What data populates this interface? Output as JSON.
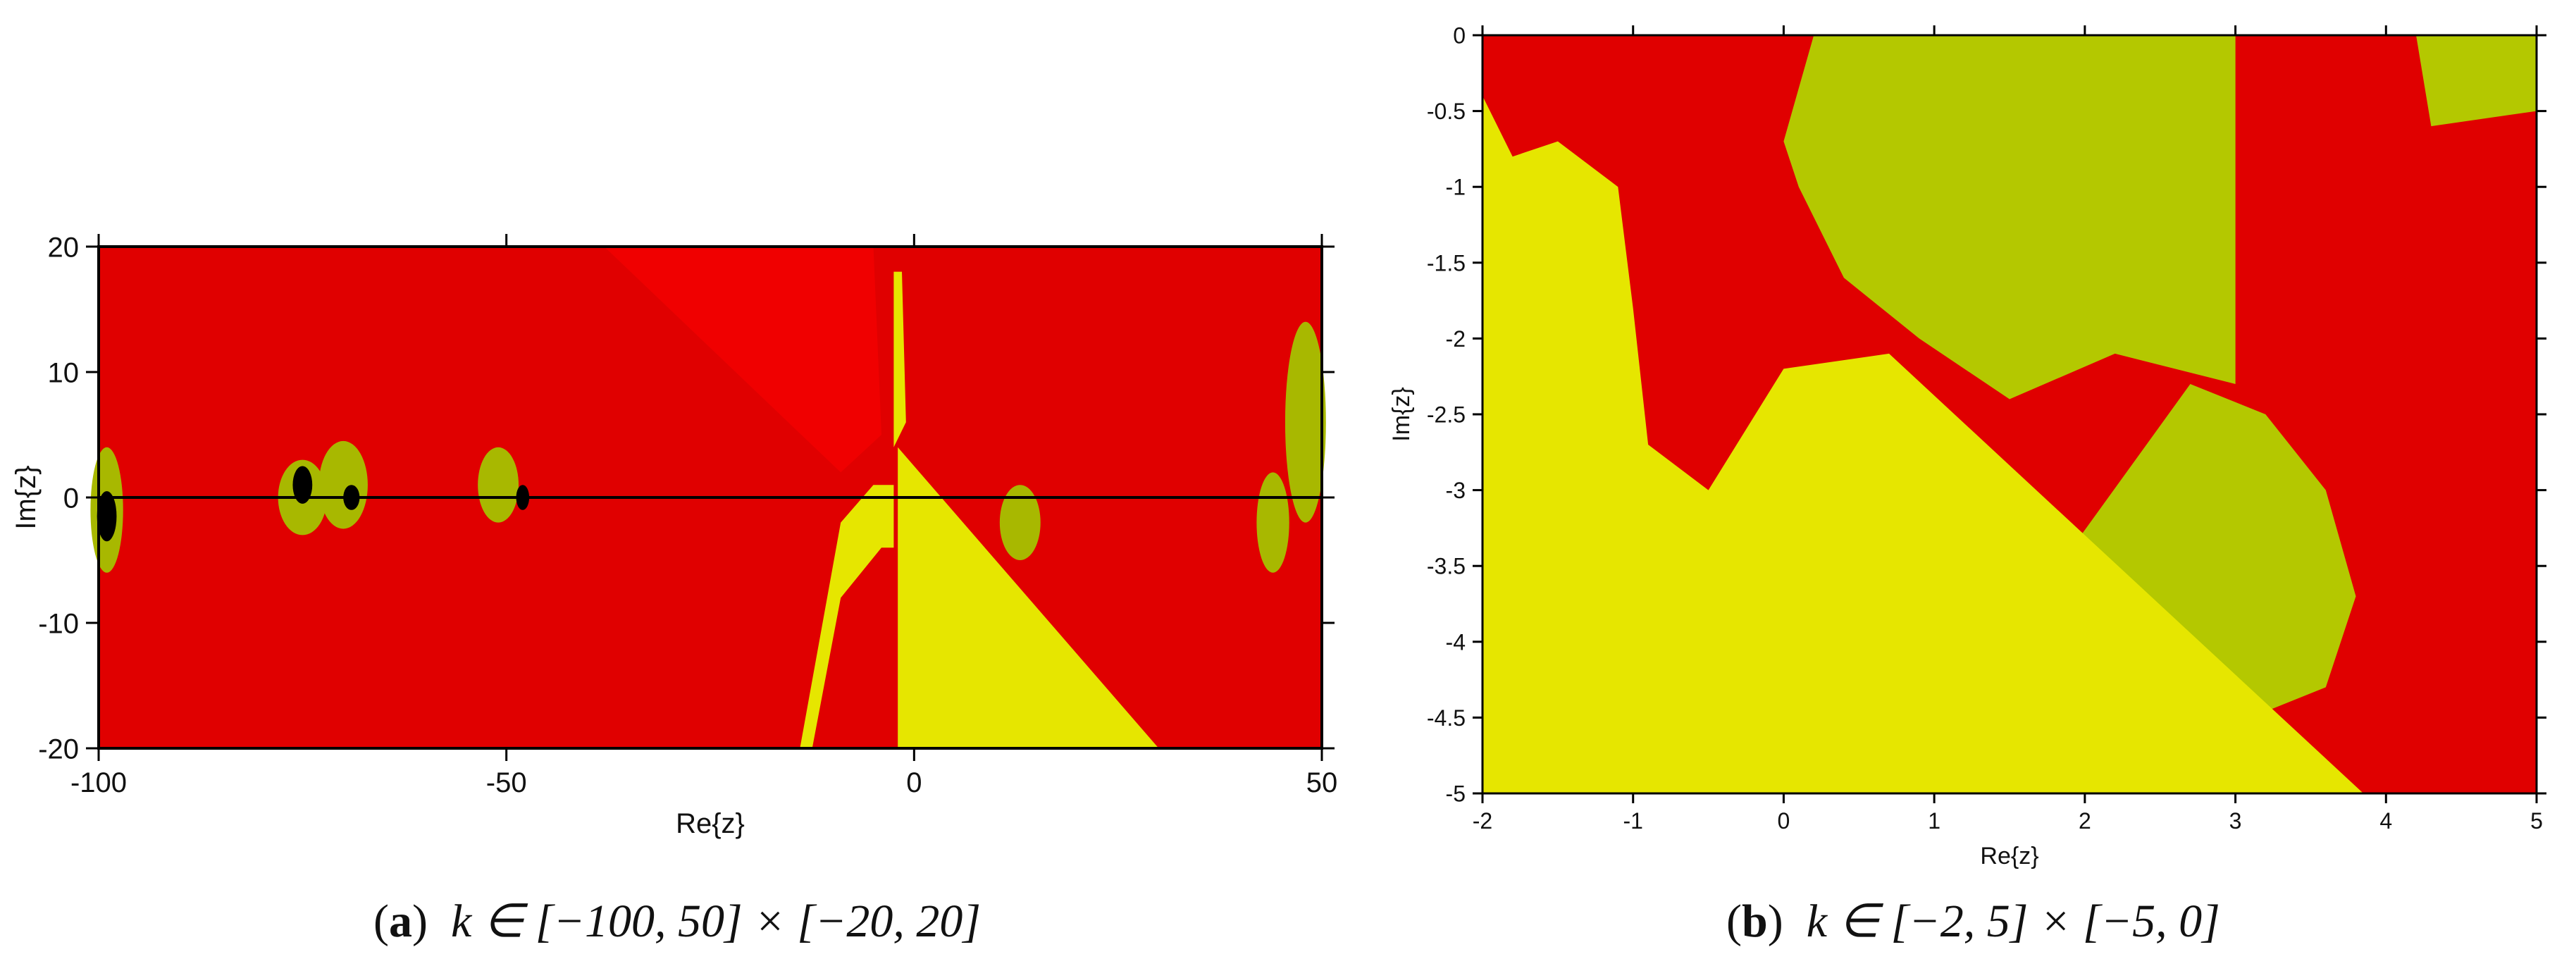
{
  "chart_data": [
    {
      "type": "heatmap",
      "title": "",
      "xlabel": "Re{z}",
      "ylabel": "Im{z}",
      "xlim": [
        -100,
        50
      ],
      "ylim": [
        -20,
        20
      ],
      "xticks": [
        -100,
        -50,
        0,
        50
      ],
      "yticks": [
        -20,
        -10,
        0,
        10,
        20
      ],
      "caption": {
        "letter": "a",
        "text": "k ∈ [−100, 50] × [−20, 20]"
      },
      "colors": {
        "red": "#e00000",
        "bright_red": "#f00000",
        "yellow": "#e6e600",
        "olive": "#a8b800",
        "black": "#000000"
      },
      "regions": [
        {
          "color": "bright_red",
          "points": [
            [
              -38,
              20
            ],
            [
              -5,
              20
            ],
            [
              -4,
              5
            ],
            [
              -9,
              2
            ]
          ]
        },
        {
          "color": "yellow",
          "points": [
            [
              -2,
              -20
            ],
            [
              30,
              -20
            ],
            [
              -2,
              4
            ]
          ]
        },
        {
          "color": "yellow",
          "points": [
            [
              -14,
              -20
            ],
            [
              -12.5,
              -20
            ],
            [
              -9,
              -8
            ],
            [
              -4,
              -4
            ],
            [
              -2.5,
              -4
            ],
            [
              -2.5,
              1
            ],
            [
              -5,
              1
            ],
            [
              -9,
              -2
            ]
          ]
        },
        {
          "color": "yellow",
          "points": [
            [
              -2.5,
              18
            ],
            [
              -1.5,
              18
            ],
            [
              -1,
              6
            ],
            [
              -2.5,
              4
            ]
          ]
        }
      ],
      "blobs": [
        {
          "x": -99,
          "y": -1,
          "rx": 2,
          "ry": 5,
          "color": "olive"
        },
        {
          "x": -75,
          "y": 0,
          "rx": 3,
          "ry": 3,
          "color": "olive"
        },
        {
          "x": -70,
          "y": 1,
          "rx": 3,
          "ry": 3.5,
          "color": "olive"
        },
        {
          "x": -51,
          "y": 1,
          "rx": 2.5,
          "ry": 3,
          "color": "olive"
        },
        {
          "x": 13,
          "y": -2,
          "rx": 2.5,
          "ry": 3,
          "color": "olive"
        },
        {
          "x": 44,
          "y": -2,
          "rx": 2,
          "ry": 4,
          "color": "olive"
        },
        {
          "x": 48,
          "y": 6,
          "rx": 2.5,
          "ry": 8,
          "color": "olive"
        },
        {
          "x": -99,
          "y": -1.5,
          "rx": 1.2,
          "ry": 2,
          "color": "black"
        },
        {
          "x": -75,
          "y": 1,
          "rx": 1.2,
          "ry": 1.5,
          "color": "black"
        },
        {
          "x": -69,
          "y": 0,
          "rx": 1,
          "ry": 1,
          "color": "black"
        },
        {
          "x": -48,
          "y": 0,
          "rx": 0.8,
          "ry": 1,
          "color": "black"
        }
      ]
    },
    {
      "type": "heatmap",
      "title": "",
      "xlabel": "Re{z}",
      "ylabel": "Im{z}",
      "xlim": [
        -2,
        5
      ],
      "ylim": [
        -5,
        0
      ],
      "xticks": [
        -2,
        -1,
        0,
        1,
        2,
        3,
        4,
        5
      ],
      "yticks": [
        0,
        -0.5,
        -1,
        -1.5,
        -2,
        -2.5,
        -3,
        -3.5,
        -4,
        -4.5,
        -5
      ],
      "caption": {
        "letter": "b",
        "text": "k ∈ [−2, 5] × [−5, 0]"
      },
      "colors": {
        "red": "#e00000",
        "bright_red": "#f00000",
        "yellow": "#e6e600",
        "olive": "#b4c800",
        "dark_olive": "#98aa00"
      },
      "regions": [
        {
          "color": "olive",
          "points": [
            [
              0.2,
              0
            ],
            [
              3.0,
              0
            ],
            [
              3.0,
              -2.3
            ],
            [
              2.2,
              -2.1
            ],
            [
              1.5,
              -2.4
            ],
            [
              0.9,
              -2.0
            ],
            [
              0.4,
              -1.6
            ],
            [
              0.1,
              -1.0
            ],
            [
              0.0,
              -0.7
            ]
          ]
        },
        {
          "color": "olive",
          "points": [
            [
              4.2,
              0
            ],
            [
              5,
              0
            ],
            [
              5,
              -0.5
            ],
            [
              4.3,
              -0.6
            ]
          ]
        },
        {
          "color": "olive",
          "points": [
            [
              2.7,
              -2.3
            ],
            [
              3.2,
              -2.5
            ],
            [
              3.6,
              -3.0
            ],
            [
              3.8,
              -3.7
            ],
            [
              3.6,
              -4.3
            ],
            [
              3.1,
              -4.5
            ],
            [
              2.3,
              -3.9
            ],
            [
              1.9,
              -3.4
            ]
          ]
        },
        {
          "color": "yellow",
          "points": [
            [
              -2,
              -5
            ],
            [
              3.85,
              -5
            ],
            [
              0.7,
              -2.1
            ],
            [
              0.0,
              -2.2
            ],
            [
              -0.5,
              -3.0
            ],
            [
              -0.9,
              -2.7
            ],
            [
              -1.0,
              -1.8
            ],
            [
              -1.1,
              -1.0
            ],
            [
              -1.5,
              -0.7
            ],
            [
              -1.8,
              -0.8
            ],
            [
              -2,
              -0.4
            ]
          ]
        }
      ],
      "blobs": []
    }
  ]
}
